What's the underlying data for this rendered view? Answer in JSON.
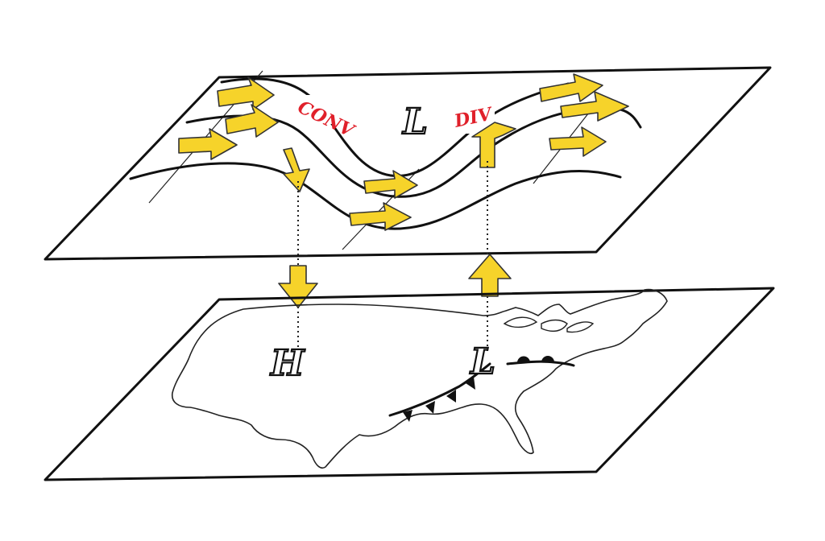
{
  "upper_level": {
    "convergence_label": "CONV",
    "divergence_label": "DIV",
    "trough_low_label": "L"
  },
  "surface": {
    "high_label": "H",
    "low_label": "L"
  }
}
